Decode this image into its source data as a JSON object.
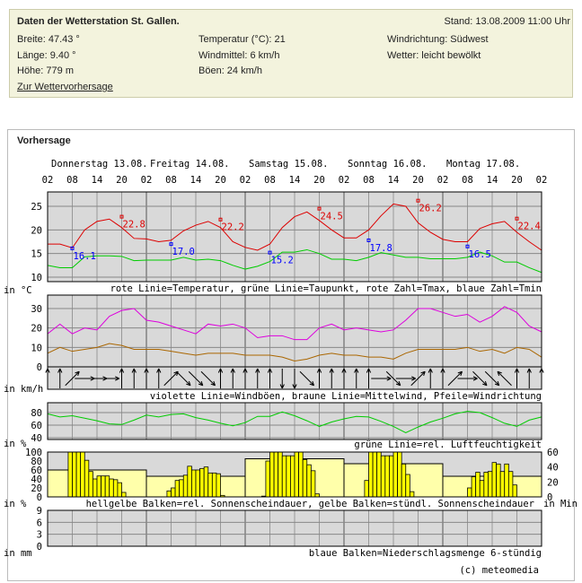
{
  "station": {
    "title": "Daten der Wetterstation St. Gallen.",
    "stand": "Stand: 13.08.2009 11:00 Uhr",
    "breite": "Breite: 47.43 °",
    "laenge": "Länge: 9.40 °",
    "hoehe": "Höhe: 779 m",
    "temperatur": "Temperatur (°C): 21",
    "windmittel": "Windmittel: 6 km/h",
    "boeen": "Böen: 24 km/h",
    "windrichtung": "Windrichtung: Südwest",
    "wetter": "Wetter: leicht bewölkt",
    "link": "Zur Wettervorhersage"
  },
  "forecast": {
    "title": "Vorhersage",
    "copyright": "(c) meteomedia"
  },
  "chart_data": {
    "type": "line",
    "days": [
      "Donnerstag 13.08.",
      "Freitag 14.08.",
      "Samstag 15.08.",
      "Sonntag 16.08.",
      "Montag 17.08."
    ],
    "hour_ticks": [
      "02",
      "08",
      "14",
      "20",
      "02",
      "08",
      "14",
      "20",
      "02",
      "08",
      "14",
      "20",
      "02",
      "08",
      "14",
      "20",
      "02",
      "08",
      "14",
      "20",
      "02"
    ],
    "step_hours": 3,
    "temperature": {
      "unit": "in °C",
      "legend": "rote Linie=Temperatur, grüne Linie=Taupunkt, rote Zahl=Tmax, blaue Zahl=Tmin",
      "yticks": [
        10,
        15,
        20,
        25
      ],
      "ylim": [
        9,
        28
      ],
      "temp": [
        17,
        17,
        16.2,
        20,
        21.8,
        22.3,
        20.5,
        18.2,
        18.1,
        17.5,
        17.8,
        19.8,
        21,
        21.8,
        20.5,
        17.5,
        16.3,
        15.7,
        17,
        20.5,
        22.8,
        23.8,
        22,
        20,
        18.3,
        18.3,
        20,
        23,
        25.5,
        25,
        21.5,
        19.5,
        18,
        17.5,
        17.5,
        20.3,
        21.3,
        21.8,
        19.5,
        17.5,
        15.7
      ],
      "dewpoint": [
        12.5,
        12,
        12,
        14.3,
        14.5,
        14.5,
        14.4,
        13.5,
        13.6,
        13.6,
        13.6,
        14.2,
        13.6,
        13.8,
        13.5,
        12.5,
        11.7,
        12.3,
        13.3,
        15.3,
        15.3,
        15.8,
        15,
        13.8,
        13.8,
        13.5,
        14.2,
        15.2,
        14.7,
        14.2,
        14.2,
        13.9,
        13.9,
        13.9,
        14.2,
        15.3,
        14.5,
        13.2,
        13.2,
        12,
        11
      ],
      "tmax": [
        {
          "hour": 18,
          "value": "22.8"
        },
        {
          "hour": 42,
          "value": "22.2"
        },
        {
          "hour": 66,
          "value": "24.5"
        },
        {
          "hour": 90,
          "value": "26.2"
        },
        {
          "hour": 114,
          "value": "22.4"
        }
      ],
      "tmin": [
        {
          "hour": 6,
          "value": "16.1"
        },
        {
          "hour": 30,
          "value": "17.0"
        },
        {
          "hour": 54,
          "value": "15.2"
        },
        {
          "hour": 78,
          "value": "17.8"
        },
        {
          "hour": 102,
          "value": "16.5"
        }
      ]
    },
    "wind": {
      "unit": "in km/h",
      "legend": "violette Linie=Windböen, braune Linie=Mittelwind, Pfeile=Windrichtung",
      "yticks": [
        0,
        10,
        20,
        30
      ],
      "ylim": [
        0,
        35
      ],
      "gusts": [
        17,
        22,
        17,
        20,
        19,
        26,
        29,
        30,
        24,
        23,
        21,
        19,
        17,
        22,
        21,
        22,
        20,
        15,
        16,
        16,
        14,
        14,
        20,
        22,
        19,
        20,
        19,
        18,
        19,
        24,
        30,
        30,
        28,
        26,
        27,
        23,
        26,
        31,
        28,
        21,
        18
      ],
      "mean": [
        7,
        10,
        8,
        9,
        10,
        12,
        11,
        9,
        9,
        9,
        8,
        7,
        6,
        7,
        7,
        7,
        6,
        6,
        6,
        5,
        3,
        4,
        6,
        7,
        6,
        6,
        5,
        5,
        4,
        7,
        9,
        9,
        9,
        9,
        10,
        8,
        9,
        7,
        10,
        9,
        5
      ],
      "arrow_directions_deg": [
        0,
        0,
        45,
        90,
        90,
        90,
        0,
        0,
        0,
        0,
        45,
        135,
        135,
        135,
        0,
        0,
        0,
        0,
        0,
        180,
        180,
        135,
        0,
        0,
        0,
        0,
        0,
        90,
        135,
        90,
        45,
        0,
        0,
        45,
        90,
        135,
        135,
        315,
        0,
        0,
        0
      ]
    },
    "humidity": {
      "unit": "in %",
      "legend": "grüne Linie=rel. Luftfeuchtigkeit",
      "yticks": [
        40,
        60,
        80
      ],
      "values": [
        78,
        73,
        75,
        71,
        67,
        62,
        61,
        68,
        76,
        73,
        77,
        78,
        72,
        68,
        63,
        59,
        64,
        74,
        74,
        81,
        75,
        67,
        58,
        65,
        70,
        74,
        73,
        66,
        58,
        48,
        57,
        65,
        71,
        78,
        82,
        80,
        72,
        63,
        58,
        68,
        73
      ]
    },
    "sunshine": {
      "unit_left": "in %",
      "unit_right": "in Min",
      "legend": "hellgelbe Balken=rel. Sonnenscheindauer, gelbe Balken=stündl. Sonnenscheindauer",
      "yticks_left": [
        0,
        20,
        40,
        60,
        80,
        100
      ],
      "yticks_right": [
        0,
        20,
        40,
        60
      ],
      "daily_relative_percent": [
        60,
        46,
        85,
        74,
        46
      ],
      "hourly_minutes": [
        {
          "start_hour": 7,
          "values": [
            60,
            60,
            60,
            60,
            49,
            34,
            24,
            28,
            28,
            28,
            24,
            23,
            19,
            6
          ]
        },
        {
          "start_hour": 7,
          "values": [
            8,
            12,
            22,
            23,
            29,
            41,
            36,
            36,
            38,
            40,
            32,
            32,
            31,
            2
          ]
        },
        {
          "start_hour": 6,
          "values": [
            1,
            48,
            60,
            60,
            60,
            55,
            55,
            55,
            60,
            60,
            50,
            43,
            35,
            4
          ]
        },
        {
          "start_hour": 7,
          "values": [
            22,
            60,
            60,
            60,
            55,
            55,
            55,
            60,
            60,
            44,
            30,
            7
          ]
        },
        {
          "start_hour": 8,
          "values": [
            12,
            27,
            33,
            22,
            33,
            34,
            46,
            44,
            34,
            44,
            34,
            16
          ]
        }
      ]
    },
    "precipitation": {
      "unit": "in mm",
      "legend": "blaue Balken=Niederschlagsmenge 6-stündig",
      "yticks": [
        0,
        3,
        6,
        9
      ],
      "values_6h": []
    },
    "colors": {
      "temp": "#dd0000",
      "dew": "#00cc00",
      "tmin": "#0000ff",
      "gust": "#dd00dd",
      "mean": "#aa6600",
      "humidity": "#00cc00",
      "sun_rel": "#ffffaa",
      "sun_hour": "#ffff00",
      "panel": "#d9d9d9"
    }
  }
}
